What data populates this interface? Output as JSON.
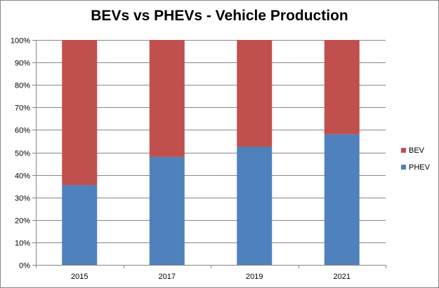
{
  "chart_data": {
    "type": "bar",
    "stacked": true,
    "title": "BEVs vs PHEVs - Vehicle Production",
    "categories": [
      "2015",
      "2017",
      "2019",
      "2021"
    ],
    "series": [
      {
        "name": "PHEV",
        "color": "#4F81BD",
        "values": [
          35.5,
          48,
          52.5,
          58
        ]
      },
      {
        "name": "BEV",
        "color": "#C0504D",
        "values": [
          64.5,
          52,
          47.5,
          42
        ]
      }
    ],
    "ylim": [
      0,
      100
    ],
    "y_ticks": [
      "0%",
      "10%",
      "20%",
      "30%",
      "40%",
      "50%",
      "60%",
      "70%",
      "80%",
      "90%",
      "100%"
    ],
    "grid": true,
    "legend_position": "right",
    "legend": [
      "BEV",
      "PHEV"
    ]
  }
}
